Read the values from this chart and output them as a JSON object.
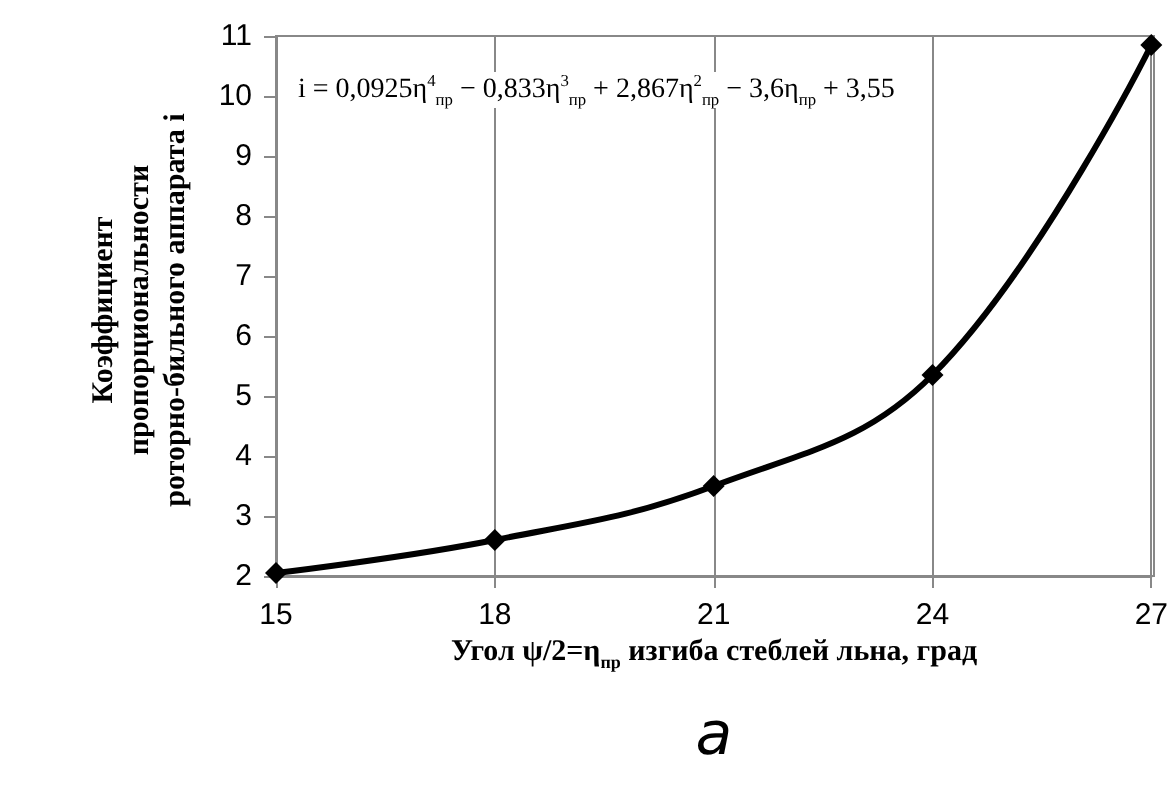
{
  "chart_data": {
    "type": "line",
    "xlabel": "Угол ψ/2=η$_{пр}$ изгиба стеблей льна, град",
    "ylabel": "Коэффициент\nпропорциональности\nроторно-бильного аппарата i",
    "annotations": [
      "i = 0,0925η$^{4}$$_{пр}$ − 0,833η$^{3}$$_{пр}$ + 2,867η$^{2}$$_{пр}$ − 3,6η$_{пр}$ + 3,55",
      "а"
    ],
    "x": [
      15,
      18,
      21,
      24,
      27
    ],
    "series": [
      {
        "color": "#000000",
        "values": [
          2.05,
          2.6,
          3.5,
          5.35,
          10.85
        ]
      }
    ],
    "xlim": [
      15,
      27
    ],
    "xticks": [
      15,
      18,
      21,
      24,
      27
    ],
    "ylim": [
      2,
      11
    ],
    "yticks": [
      2,
      3,
      4,
      5,
      6,
      7,
      8,
      9,
      10,
      11
    ],
    "grid": "x",
    "marker": "diamond",
    "line_style": "solid"
  }
}
